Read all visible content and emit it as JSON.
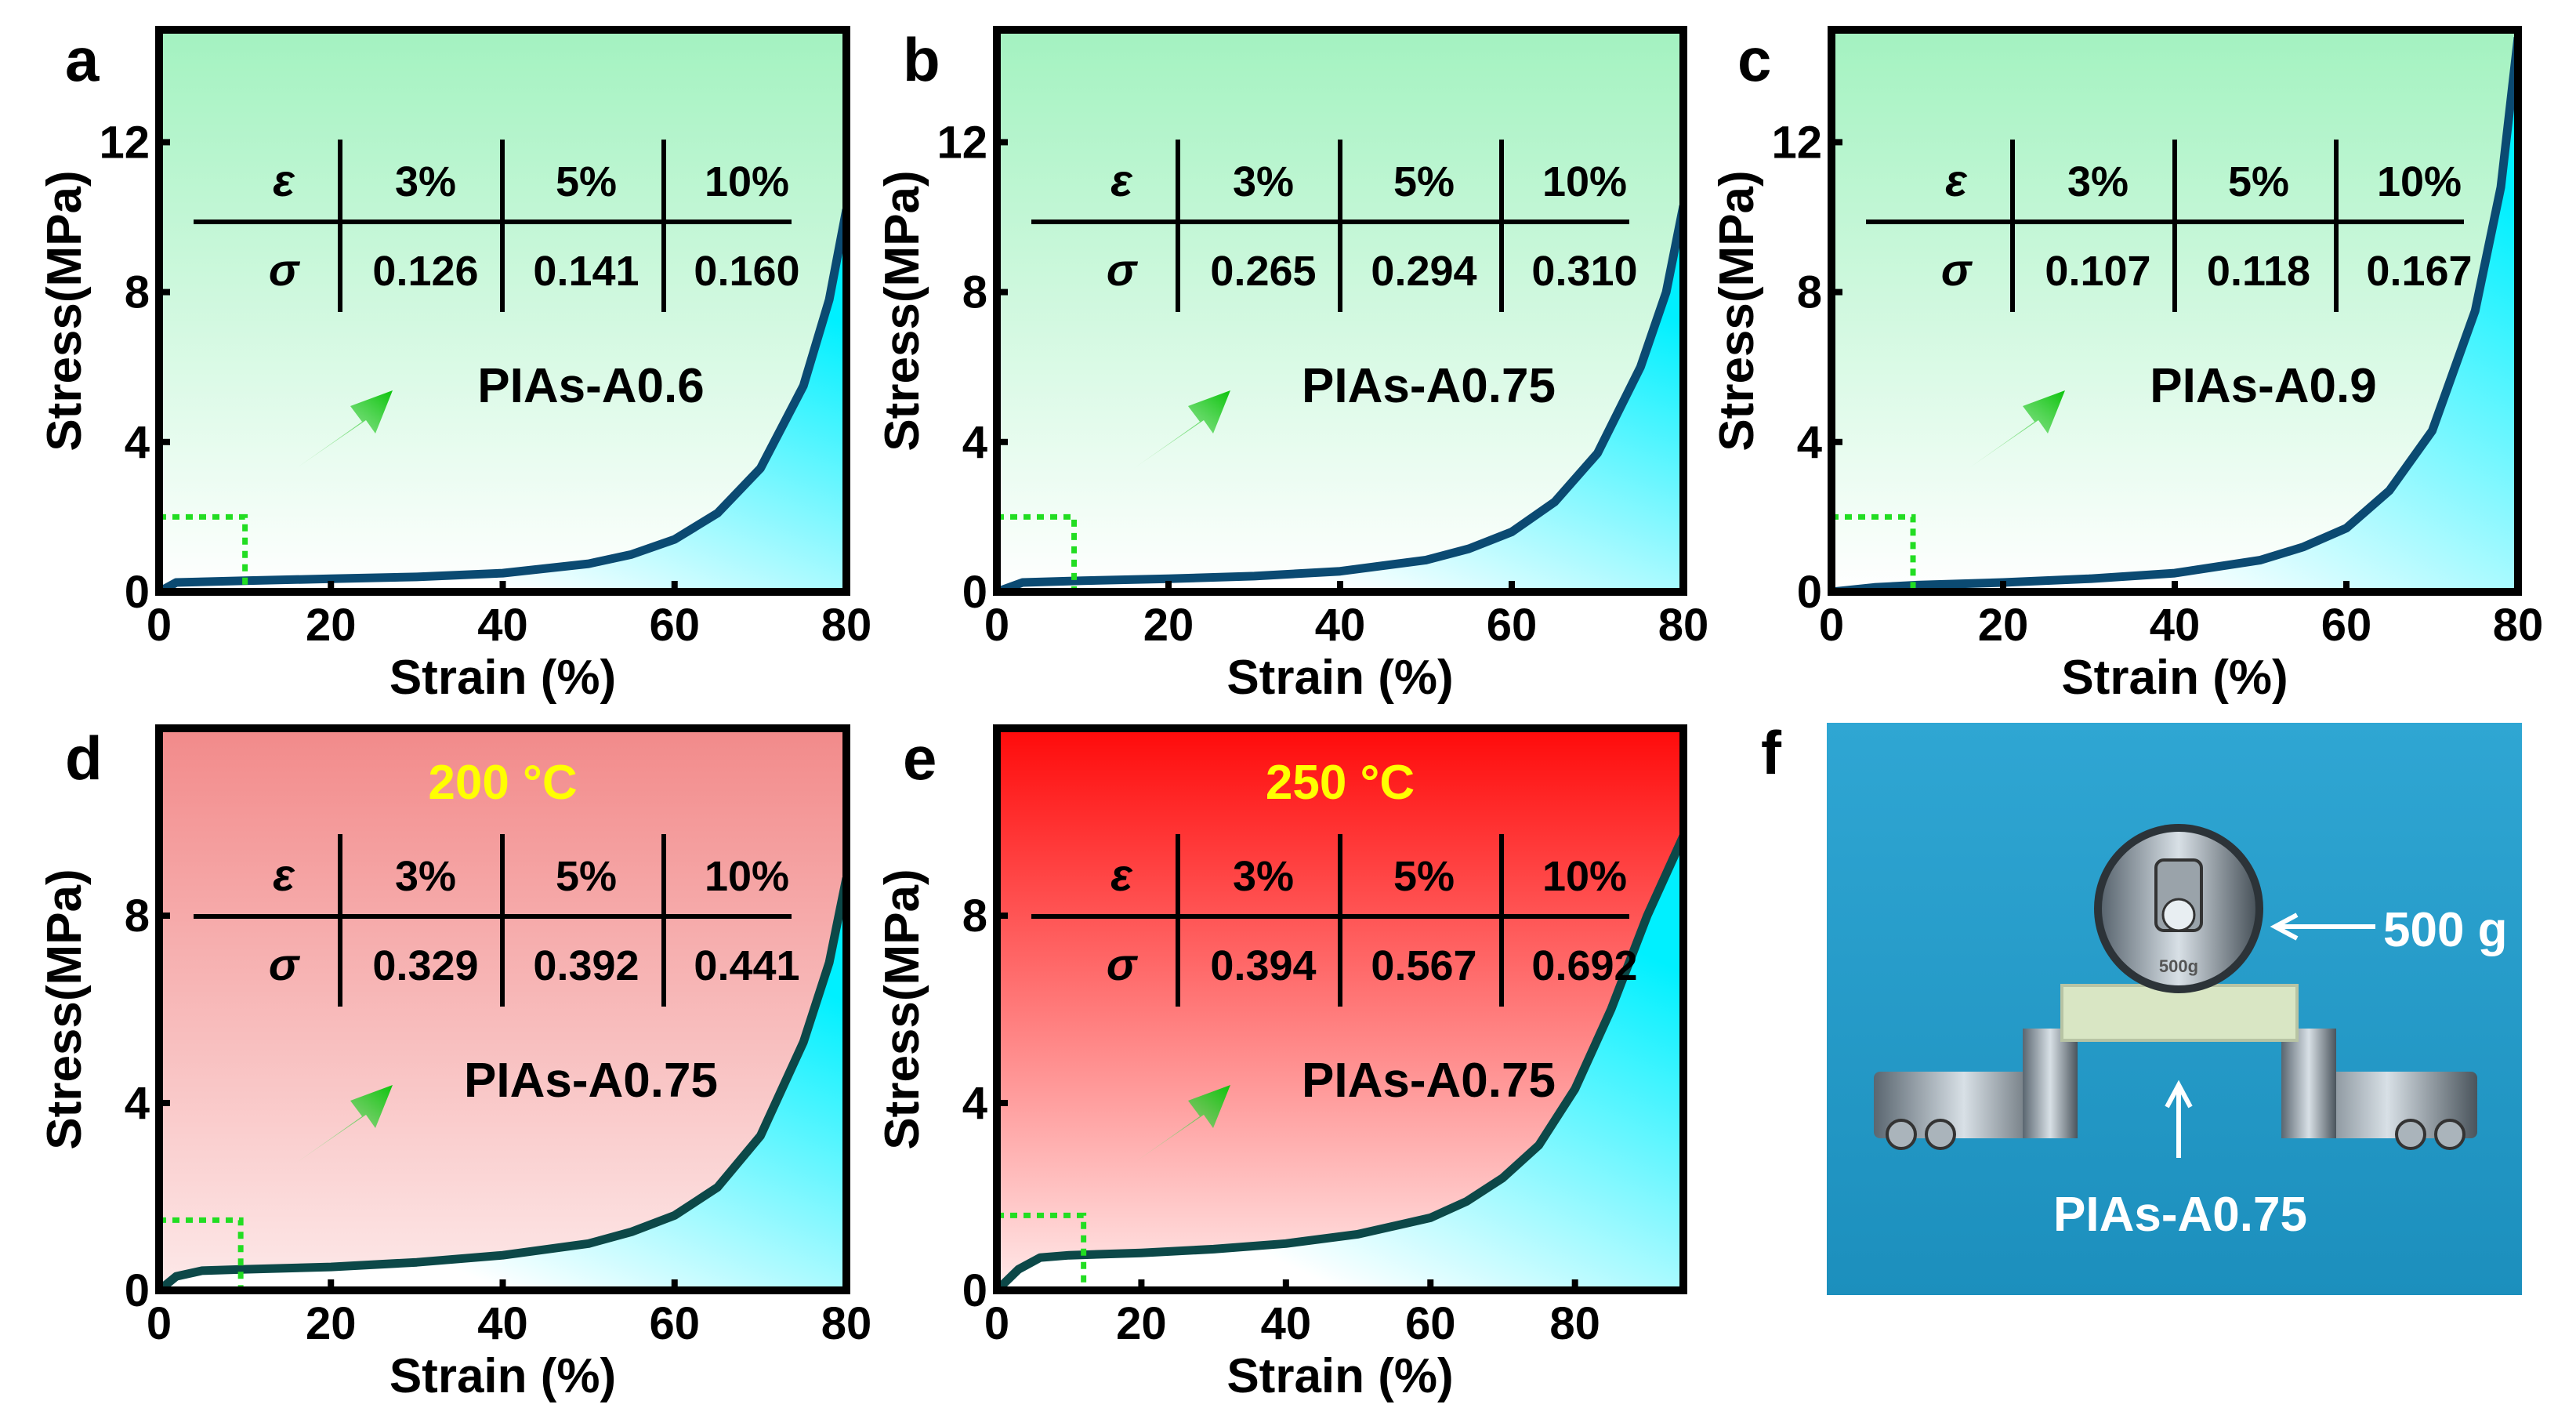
{
  "chart_data": [
    {
      "type": "line",
      "letter": "a",
      "title": "",
      "xlabel": "Strain (%)",
      "ylabel": "Stress(MPa)",
      "xlim": [
        0,
        80
      ],
      "ylim": [
        0,
        15
      ],
      "xticks": [
        "0",
        "20",
        "40",
        "60",
        "80"
      ],
      "xtick_values": [
        0,
        20,
        40,
        60,
        80
      ],
      "yticks": [
        "0",
        "4",
        "8",
        "12"
      ],
      "ytick_values": [
        0,
        4,
        8,
        12
      ],
      "sample_label": "PIAs-A0.6",
      "annotation": "",
      "bg_top": "#a3f2c0",
      "bg_bottom": "#ffffff",
      "curve_color": "#0b4a72",
      "dotted_box": [
        10,
        2
      ],
      "table": {
        "header": [
          "ε",
          "3%",
          "5%",
          "10%"
        ],
        "row": [
          "σ",
          "0.126",
          "0.141",
          "0.160"
        ]
      },
      "series": [
        {
          "name": "PIAs-A0.6",
          "points": [
            [
              0,
              0
            ],
            [
              2,
              0.25
            ],
            [
              10,
              0.3
            ],
            [
              20,
              0.35
            ],
            [
              30,
              0.4
            ],
            [
              40,
              0.5
            ],
            [
              50,
              0.75
            ],
            [
              55,
              1.0
            ],
            [
              60,
              1.4
            ],
            [
              65,
              2.1
            ],
            [
              70,
              3.3
            ],
            [
              75,
              5.5
            ],
            [
              78,
              7.8
            ],
            [
              80,
              10.2
            ]
          ]
        }
      ]
    },
    {
      "type": "line",
      "letter": "b",
      "title": "",
      "xlabel": "Strain (%)",
      "ylabel": "Stress(MPa)",
      "xlim": [
        0,
        80
      ],
      "ylim": [
        0,
        15
      ],
      "xticks": [
        "0",
        "20",
        "40",
        "60",
        "80"
      ],
      "xtick_values": [
        0,
        20,
        40,
        60,
        80
      ],
      "yticks": [
        "0",
        "4",
        "8",
        "12"
      ],
      "ytick_values": [
        0,
        4,
        8,
        12
      ],
      "sample_label": "PIAs-A0.75",
      "annotation": "",
      "bg_top": "#a3f2c0",
      "bg_bottom": "#ffffff",
      "curve_color": "#0b4a72",
      "dotted_box": [
        9,
        2
      ],
      "table": {
        "header": [
          "ε",
          "3%",
          "5%",
          "10%"
        ],
        "row": [
          "σ",
          "0.265",
          "0.294",
          "0.310"
        ]
      },
      "series": [
        {
          "name": "PIAs-A0.75",
          "points": [
            [
              0,
              0
            ],
            [
              3,
              0.25
            ],
            [
              10,
              0.3
            ],
            [
              20,
              0.35
            ],
            [
              30,
              0.42
            ],
            [
              40,
              0.55
            ],
            [
              50,
              0.85
            ],
            [
              55,
              1.15
            ],
            [
              60,
              1.6
            ],
            [
              65,
              2.4
            ],
            [
              70,
              3.7
            ],
            [
              75,
              6.0
            ],
            [
              78,
              8.0
            ],
            [
              80,
              10.3
            ]
          ]
        }
      ]
    },
    {
      "type": "line",
      "letter": "c",
      "title": "",
      "xlabel": "Strain (%)",
      "ylabel": "Stress(MPa)",
      "xlim": [
        0,
        80
      ],
      "ylim": [
        0,
        15
      ],
      "xticks": [
        "0",
        "20",
        "40",
        "60",
        "80"
      ],
      "xtick_values": [
        0,
        20,
        40,
        60,
        80
      ],
      "yticks": [
        "0",
        "4",
        "8",
        "12"
      ],
      "ytick_values": [
        0,
        4,
        8,
        12
      ],
      "sample_label": "PIAs-A0.9",
      "annotation": "",
      "bg_top": "#a3f2c0",
      "bg_bottom": "#ffffff",
      "curve_color": "#0b4a72",
      "dotted_box": [
        9.5,
        2
      ],
      "table": {
        "header": [
          "ε",
          "3%",
          "5%",
          "10%"
        ],
        "row": [
          "σ",
          "0.107",
          "0.118",
          "0.167"
        ]
      },
      "series": [
        {
          "name": "PIAs-A0.9",
          "points": [
            [
              0,
              0
            ],
            [
              5,
              0.12
            ],
            [
              10,
              0.18
            ],
            [
              20,
              0.25
            ],
            [
              30,
              0.35
            ],
            [
              40,
              0.5
            ],
            [
              50,
              0.85
            ],
            [
              55,
              1.2
            ],
            [
              60,
              1.7
            ],
            [
              65,
              2.7
            ],
            [
              70,
              4.3
            ],
            [
              75,
              7.5
            ],
            [
              78,
              10.8
            ],
            [
              80,
              14.8
            ]
          ]
        }
      ]
    },
    {
      "type": "line",
      "letter": "d",
      "title": "",
      "xlabel": "Strain (%)",
      "ylabel": "Stress(MPa)",
      "xlim": [
        0,
        80
      ],
      "ylim": [
        0,
        12
      ],
      "xticks": [
        "0",
        "20",
        "40",
        "60",
        "80"
      ],
      "xtick_values": [
        0,
        20,
        40,
        60,
        80
      ],
      "yticks": [
        "0",
        "4",
        "8"
      ],
      "ytick_values": [
        0,
        4,
        8
      ],
      "sample_label": "PIAs-A0.75",
      "annotation": "200 °C",
      "annotation_color": "#ffff00",
      "bg_top": "#f28a8a",
      "bg_bottom": "#fde9e9",
      "curve_color": "#0c4848",
      "dotted_box": [
        9.5,
        1.5
      ],
      "table": {
        "header": [
          "ε",
          "3%",
          "5%",
          "10%"
        ],
        "row": [
          "σ",
          "0.329",
          "0.392",
          "0.441"
        ]
      },
      "series": [
        {
          "name": "PIAs-A0.75 (200 °C)",
          "points": [
            [
              0,
              0
            ],
            [
              2,
              0.3
            ],
            [
              5,
              0.42
            ],
            [
              10,
              0.45
            ],
            [
              20,
              0.5
            ],
            [
              30,
              0.6
            ],
            [
              40,
              0.75
            ],
            [
              50,
              1.0
            ],
            [
              55,
              1.25
            ],
            [
              60,
              1.6
            ],
            [
              65,
              2.2
            ],
            [
              70,
              3.3
            ],
            [
              75,
              5.3
            ],
            [
              78,
              7.0
            ],
            [
              80,
              8.8
            ]
          ]
        }
      ]
    },
    {
      "type": "line",
      "letter": "e",
      "title": "",
      "xlabel": "Strain (%)",
      "ylabel": "Stress(MPa)",
      "xlim": [
        0,
        95
      ],
      "ylim": [
        0,
        12
      ],
      "xticks": [
        "0",
        "20",
        "40",
        "60",
        "80"
      ],
      "xtick_values": [
        0,
        20,
        40,
        60,
        80
      ],
      "yticks": [
        "0",
        "4",
        "8"
      ],
      "ytick_values": [
        0,
        4,
        8
      ],
      "sample_label": "PIAs-A0.75",
      "annotation": "250 °C",
      "annotation_color": "#ffff00",
      "bg_top": "#ff0a0a",
      "bg_bottom": "#ffeaea",
      "curve_color": "#0c4848",
      "dotted_box": [
        12,
        1.6
      ],
      "table": {
        "header": [
          "ε",
          "3%",
          "5%",
          "10%"
        ],
        "row": [
          "σ",
          "0.394",
          "0.567",
          "0.692"
        ]
      },
      "series": [
        {
          "name": "PIAs-A0.75 (250 °C)",
          "points": [
            [
              0,
              0
            ],
            [
              3,
              0.45
            ],
            [
              6,
              0.7
            ],
            [
              10,
              0.75
            ],
            [
              20,
              0.8
            ],
            [
              30,
              0.88
            ],
            [
              40,
              1.0
            ],
            [
              50,
              1.2
            ],
            [
              60,
              1.55
            ],
            [
              65,
              1.9
            ],
            [
              70,
              2.4
            ],
            [
              75,
              3.1
            ],
            [
              80,
              4.3
            ],
            [
              85,
              6.0
            ],
            [
              90,
              8.0
            ],
            [
              95,
              9.7
            ]
          ]
        }
      ]
    }
  ],
  "photo": {
    "letter": "f",
    "weight_label": "500 g",
    "weight_engraving": "500g",
    "sample_label": "PIAs-A0.75",
    "bg_color": "#2b9fcc"
  }
}
